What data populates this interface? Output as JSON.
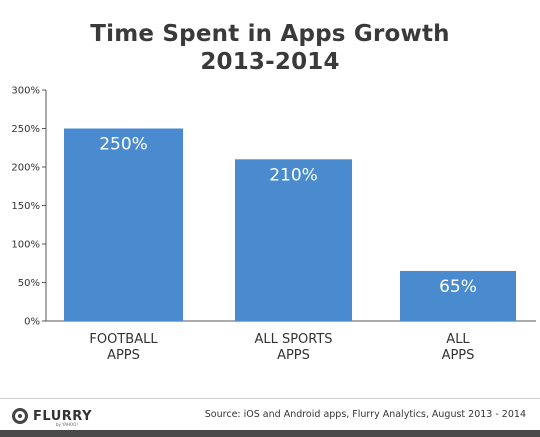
{
  "title_line1": "Time Spent in Apps Growth",
  "title_line2": "2013-2014",
  "chart_data": {
    "type": "bar",
    "title": "Time Spent in Apps Growth 2013-2014",
    "categories": [
      [
        "FOOTBALL",
        "APPS"
      ],
      [
        "ALL SPORTS",
        "APPS"
      ],
      [
        "ALL",
        "APPS"
      ]
    ],
    "values": [
      250,
      210,
      65
    ],
    "data_labels": [
      "250%",
      "210%",
      "65%"
    ],
    "ylim": [
      0,
      300
    ],
    "yticks": [
      0,
      50,
      100,
      150,
      200,
      250,
      300
    ],
    "ytick_labels": [
      "0%",
      "50%",
      "100%",
      "150%",
      "200%",
      "250%",
      "300%"
    ],
    "grid": false,
    "bar_color": "#4a8bd0"
  },
  "footer": {
    "logo_text": "FLURRY",
    "logo_sub": "by YAHOO!",
    "source": "Source: iOS and Android apps, Flurry Analytics, August 2013 - 2014"
  },
  "colors": {
    "bar": "#4a8bd0",
    "title": "#3a3a3a",
    "footer_bar": "#4a4a4a"
  }
}
